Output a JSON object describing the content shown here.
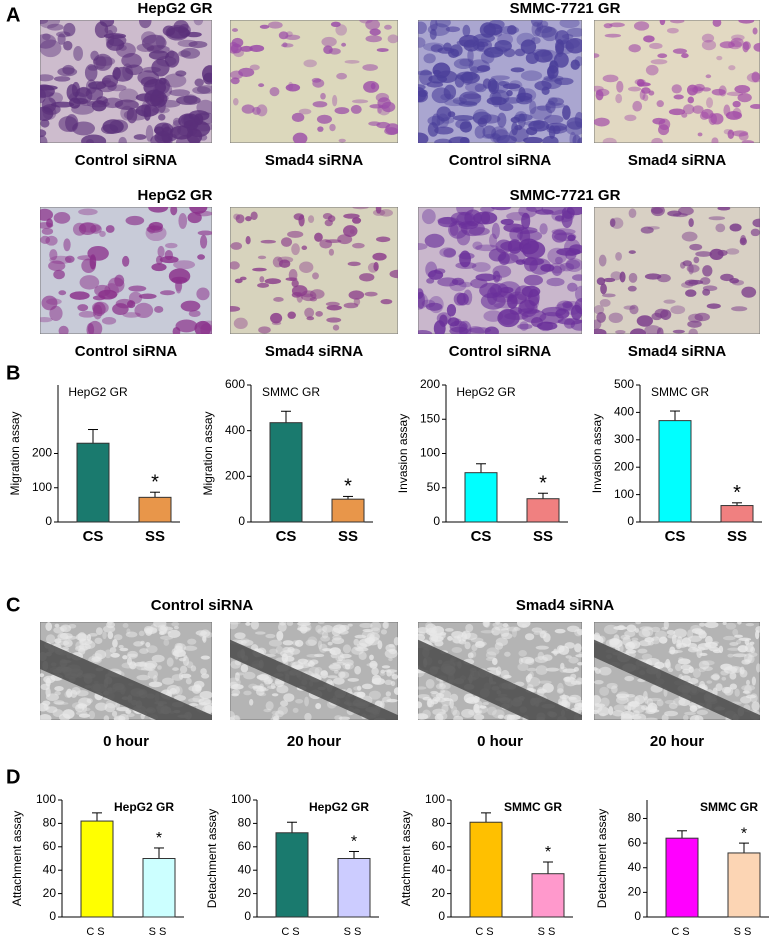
{
  "panel_labels": [
    "A",
    "B",
    "C",
    "D"
  ],
  "panel_a": {
    "rows": [
      {
        "titles": [
          "HepG2 GR",
          "SMMC-7721 GR"
        ],
        "captions": [
          "Control siRNA",
          "Smad4 siRNA",
          "Control siRNA",
          "Smad4 siRNA"
        ]
      },
      {
        "titles": [
          "HepG2 GR",
          "SMMC-7721 GR"
        ],
        "captions": [
          "Control siRNA",
          "Smad4 siRNA",
          "Control siRNA",
          "Smad4 siRNA"
        ]
      }
    ]
  },
  "panel_c": {
    "titles": [
      "Control siRNA",
      "Smad4 siRNA"
    ],
    "captions": [
      "0 hour",
      "20 hour",
      "0 hour",
      "20 hour"
    ]
  },
  "chart_data": [
    {
      "type": "bar",
      "title": "HepG2 GR",
      "y_label": "Migration assay",
      "categories": [
        "CS",
        "SS"
      ],
      "values": [
        230,
        72
      ],
      "errors": [
        40,
        15
      ],
      "colors": [
        "#1a7a6e",
        "#e8964a"
      ],
      "ylim": [
        0,
        400
      ],
      "yticks": [
        0,
        100,
        200
      ],
      "annotation": "*"
    },
    {
      "type": "bar",
      "title": "SMMC GR",
      "y_label": "Migration assay",
      "categories": [
        "CS",
        "SS"
      ],
      "values": [
        435,
        100
      ],
      "errors": [
        50,
        12
      ],
      "colors": [
        "#1a7a6e",
        "#e8964a"
      ],
      "ylim": [
        0,
        600
      ],
      "yticks": [
        0,
        200,
        400,
        600
      ],
      "annotation": "*"
    },
    {
      "type": "bar",
      "title": "HepG2 GR",
      "y_label": "Invasion assay",
      "categories": [
        "CS",
        "SS"
      ],
      "values": [
        72,
        34
      ],
      "errors": [
        13,
        8
      ],
      "colors": [
        "#00ffff",
        "#f08080"
      ],
      "ylim": [
        0,
        200
      ],
      "yticks": [
        0,
        50,
        100,
        150,
        200
      ],
      "annotation": "*"
    },
    {
      "type": "bar",
      "title": "SMMC GR",
      "y_label": "Invasion assay",
      "categories": [
        "CS",
        "SS"
      ],
      "values": [
        370,
        60
      ],
      "errors": [
        35,
        10
      ],
      "colors": [
        "#00ffff",
        "#f08080"
      ],
      "ylim": [
        0,
        500
      ],
      "yticks": [
        0,
        100,
        200,
        300,
        400,
        500
      ],
      "annotation": "*"
    },
    {
      "type": "bar",
      "title": "HepG2 GR",
      "y_label": "Attachment assay",
      "categories": [
        "CS",
        "SS"
      ],
      "values": [
        82,
        50
      ],
      "errors": [
        7,
        9
      ],
      "colors": [
        "#ffff00",
        "#ccffff"
      ],
      "ylim": [
        0,
        100
      ],
      "yticks": [
        0,
        20,
        40,
        60,
        80,
        100
      ],
      "annotation": "*"
    },
    {
      "type": "bar",
      "title": "HepG2 GR",
      "y_label": "Detachment assay",
      "categories": [
        "CS",
        "SS"
      ],
      "values": [
        72,
        50
      ],
      "errors": [
        9,
        6
      ],
      "colors": [
        "#1a7a6e",
        "#ccccff"
      ],
      "ylim": [
        0,
        100
      ],
      "yticks": [
        0,
        20,
        40,
        60,
        80,
        100
      ],
      "annotation": "*"
    },
    {
      "type": "bar",
      "title": "SMMC GR",
      "y_label": "Attachment assay",
      "categories": [
        "CS",
        "SS"
      ],
      "values": [
        81,
        37
      ],
      "errors": [
        8,
        10
      ],
      "colors": [
        "#ffc000",
        "#ff99cc"
      ],
      "ylim": [
        0,
        100
      ],
      "yticks": [
        0,
        20,
        40,
        60,
        80,
        100
      ],
      "annotation": "*"
    },
    {
      "type": "bar",
      "title": "SMMC GR",
      "y_label": "Detachment assay",
      "categories": [
        "CS",
        "SS"
      ],
      "values": [
        64,
        52
      ],
      "errors": [
        6,
        8
      ],
      "colors": [
        "#ff00ff",
        "#fcd5b4"
      ],
      "ylim": [
        0,
        95
      ],
      "yticks": [
        0,
        20,
        40,
        60,
        80
      ],
      "annotation": "*"
    }
  ]
}
